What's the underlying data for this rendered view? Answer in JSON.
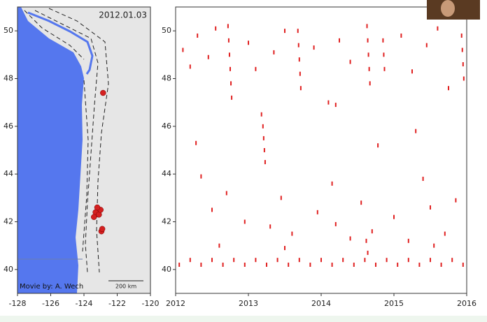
{
  "chart_data": [
    {
      "type": "map",
      "title": "2012.01.03",
      "credit": "Movie by: A. Wech",
      "scale_label": "200 km",
      "xlim": [
        -128,
        -120
      ],
      "ylim": [
        39,
        51
      ],
      "xticks": [
        -128,
        -126,
        -124,
        -122,
        -120
      ],
      "yticks": [
        40,
        42,
        44,
        46,
        48,
        50
      ],
      "color": "#d42020",
      "x": [
        -123.3,
        -123.1,
        -123.0,
        -122.85,
        -122.95,
        -123.4,
        -123.2,
        -122.9
      ],
      "y": [
        42.4,
        42.3,
        42.5,
        47.4,
        41.6,
        42.2,
        42.6,
        41.7
      ]
    },
    {
      "type": "scatter",
      "xlim": [
        2012,
        2016
      ],
      "ylim": [
        39,
        51
      ],
      "xticks": [
        2012,
        2013,
        2014,
        2015,
        2016
      ],
      "yticks": [
        40,
        42,
        44,
        46,
        48,
        50
      ],
      "color": "#e02020",
      "x": [
        2012.05,
        2012.2,
        2012.35,
        2012.5,
        2012.65,
        2012.8,
        2012.95,
        2013.1,
        2013.25,
        2013.4,
        2013.55,
        2013.7,
        2013.85,
        2014.0,
        2014.15,
        2014.3,
        2014.45,
        2014.6,
        2014.75,
        2014.9,
        2015.05,
        2015.2,
        2015.35,
        2015.5,
        2015.65,
        2015.8,
        2015.95,
        2012.72,
        2012.73,
        2012.74,
        2012.75,
        2012.76,
        2012.77,
        2013.18,
        2013.2,
        2013.21,
        2013.22,
        2013.23,
        2013.68,
        2013.69,
        2013.7,
        2013.71,
        2013.72,
        2014.63,
        2014.64,
        2014.65,
        2014.66,
        2014.67,
        2014.85,
        2014.86,
        2014.87,
        2015.93,
        2015.94,
        2015.95,
        2015.96,
        2012.1,
        2012.2,
        2012.3,
        2012.45,
        2012.55,
        2013.0,
        2013.1,
        2013.35,
        2013.5,
        2013.9,
        2014.1,
        2014.25,
        2014.4,
        2015.1,
        2015.25,
        2015.45,
        2015.6,
        2015.75,
        2012.35,
        2012.5,
        2012.7,
        2012.95,
        2013.3,
        2013.45,
        2013.6,
        2013.95,
        2014.15,
        2014.2,
        2014.4,
        2014.55,
        2014.7,
        2015.0,
        2015.2,
        2015.4,
        2015.5,
        2015.7,
        2015.85,
        2012.6,
        2013.5,
        2014.62,
        2014.64,
        2015.55,
        2012.28,
        2014.78,
        2014.2,
        2015.3
      ],
      "y": [
        40.2,
        40.4,
        40.2,
        40.4,
        40.2,
        40.4,
        40.2,
        40.4,
        40.2,
        40.4,
        40.2,
        40.4,
        40.2,
        40.4,
        40.2,
        40.4,
        40.2,
        40.4,
        40.2,
        40.4,
        40.2,
        40.4,
        40.2,
        40.4,
        40.2,
        40.4,
        40.2,
        50.2,
        49.6,
        49.0,
        48.4,
        47.8,
        47.2,
        46.5,
        46.0,
        45.5,
        45.0,
        44.5,
        50.0,
        49.4,
        48.8,
        48.2,
        47.6,
        50.2,
        49.6,
        49.0,
        48.4,
        47.8,
        49.6,
        49.0,
        48.4,
        49.8,
        49.2,
        48.6,
        48.0,
        49.2,
        48.5,
        49.8,
        48.9,
        50.1,
        49.5,
        48.4,
        49.1,
        50.0,
        49.3,
        47.0,
        49.6,
        48.7,
        49.8,
        48.3,
        49.4,
        50.1,
        47.6,
        43.9,
        42.5,
        43.2,
        42.0,
        41.8,
        43.0,
        41.5,
        42.4,
        43.6,
        41.9,
        41.3,
        42.8,
        41.6,
        42.2,
        41.2,
        43.8,
        42.6,
        41.5,
        42.9,
        41.0,
        40.9,
        41.2,
        40.7,
        41.0,
        45.3,
        45.2,
        46.9,
        45.8
      ]
    }
  ]
}
